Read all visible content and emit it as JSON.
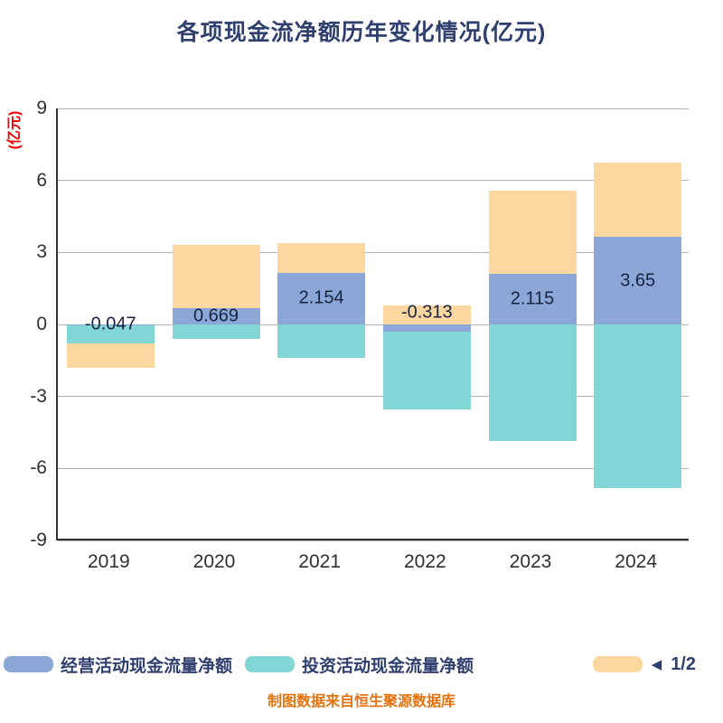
{
  "legend": {
    "pagination": "1/2",
    "prev_icon": "◀"
  },
  "footer": {
    "source_note": "制图数据来自恒生聚源数据库"
  },
  "chart_data": {
    "type": "bar",
    "stacked": true,
    "title": "各项现金流净额历年变化情况(亿元)",
    "ylabel": "(亿元)",
    "xlabel": "",
    "categories": [
      "2019",
      "2020",
      "2021",
      "2022",
      "2023",
      "2024"
    ],
    "series": [
      {
        "name": "经营活动现金流量净额",
        "color": "#8ba7d7",
        "values": [
          -0.047,
          0.669,
          2.154,
          -0.313,
          2.115,
          3.65
        ]
      },
      {
        "name": "投资活动现金流量净额",
        "color": "#83d6d6",
        "values": [
          -0.75,
          -0.62,
          -1.4,
          -3.24,
          -4.85,
          -6.8
        ]
      },
      {
        "name": "",
        "color": "#fcd79f",
        "values": [
          -1.0,
          2.65,
          1.25,
          0.8,
          3.45,
          3.1
        ]
      }
    ],
    "bar_labels": [
      "-0.047",
      "0.669",
      "2.154",
      "-0.313",
      "2.115",
      "3.65"
    ],
    "yticks": [
      9,
      6,
      3,
      0,
      -3,
      -6,
      -9
    ],
    "ylim": [
      -9,
      9
    ],
    "grid": true,
    "legend_position": "bottom"
  }
}
